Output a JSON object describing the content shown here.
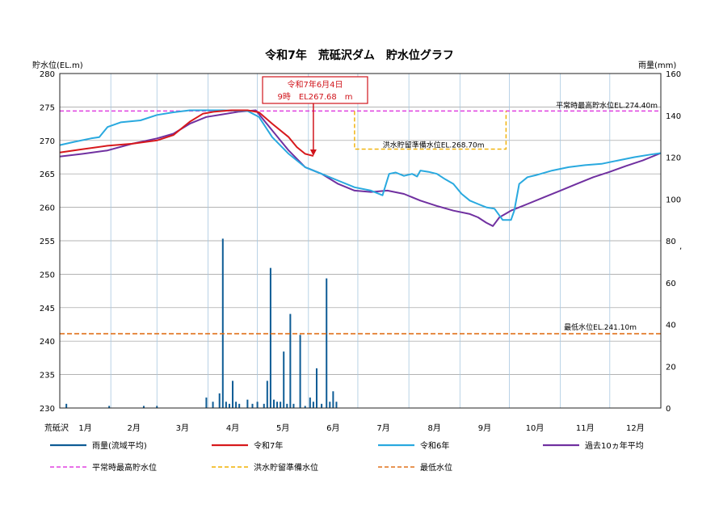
{
  "chart_data": {
    "type": "line",
    "title": "令和7年　荒砥沢ダム　貯水位グラフ",
    "y_left_label": "貯水位(EL.m)",
    "y_right_label": "雨量(mm)",
    "ylim_left": [
      230,
      280
    ],
    "ylim_right": [
      0,
      160
    ],
    "y_left_ticks": [
      230,
      235,
      240,
      245,
      250,
      255,
      260,
      265,
      270,
      275,
      280
    ],
    "y_right_ticks": [
      0,
      20,
      40,
      60,
      80,
      100,
      120,
      140,
      160
    ],
    "x_label": "荒砥沢",
    "x_tick_labels": [
      "1月",
      "2月",
      "3月",
      "4月",
      "5月",
      "6月",
      "7月",
      "8月",
      "9月",
      "10月",
      "11月",
      "12月"
    ],
    "x_range_days": [
      1,
      366
    ],
    "grid": true,
    "series": [
      {
        "name": "令和7年",
        "color": "#d7191c",
        "values": [
          [
            1,
            268.2
          ],
          [
            15,
            268.7
          ],
          [
            30,
            269.2
          ],
          [
            45,
            269.5
          ],
          [
            60,
            270.0
          ],
          [
            70,
            270.8
          ],
          [
            80,
            272.8
          ],
          [
            88,
            274.0
          ],
          [
            95,
            274.3
          ],
          [
            105,
            274.5
          ],
          [
            115,
            274.5
          ],
          [
            122,
            274.2
          ],
          [
            130,
            272.5
          ],
          [
            140,
            270.5
          ],
          [
            145,
            269.0
          ],
          [
            150,
            268.0
          ],
          [
            155,
            267.68
          ]
        ]
      },
      {
        "name": "令和6年",
        "color": "#29a9df",
        "values": [
          [
            1,
            269.3
          ],
          [
            10,
            269.8
          ],
          [
            20,
            270.3
          ],
          [
            25,
            270.5
          ],
          [
            30,
            272.0
          ],
          [
            38,
            272.7
          ],
          [
            50,
            273.0
          ],
          [
            60,
            273.8
          ],
          [
            70,
            274.2
          ],
          [
            80,
            274.5
          ],
          [
            90,
            274.5
          ],
          [
            100,
            274.5
          ],
          [
            115,
            274.4
          ],
          [
            122,
            273.5
          ],
          [
            130,
            270.5
          ],
          [
            140,
            268.0
          ],
          [
            150,
            266.0
          ],
          [
            160,
            265.0
          ],
          [
            170,
            264.0
          ],
          [
            180,
            263.0
          ],
          [
            190,
            262.5
          ],
          [
            197,
            261.8
          ],
          [
            201,
            265.0
          ],
          [
            205,
            265.2
          ],
          [
            210,
            264.7
          ],
          [
            215,
            265.0
          ],
          [
            218,
            264.6
          ],
          [
            220,
            265.5
          ],
          [
            225,
            265.3
          ],
          [
            230,
            265.0
          ],
          [
            235,
            264.2
          ],
          [
            240,
            263.5
          ],
          [
            245,
            262.0
          ],
          [
            250,
            261.0
          ],
          [
            255,
            260.5
          ],
          [
            260,
            260.0
          ],
          [
            265,
            259.8
          ],
          [
            270,
            258.1
          ],
          [
            275,
            258.1
          ],
          [
            277,
            259.5
          ],
          [
            280,
            263.5
          ],
          [
            285,
            264.5
          ],
          [
            290,
            264.8
          ],
          [
            300,
            265.5
          ],
          [
            310,
            266.0
          ],
          [
            320,
            266.3
          ],
          [
            330,
            266.5
          ],
          [
            340,
            267.0
          ],
          [
            350,
            267.5
          ],
          [
            360,
            267.9
          ],
          [
            366,
            268.1
          ]
        ]
      },
      {
        "name": "過去10ヵ年平均",
        "color": "#7030a0",
        "values": [
          [
            1,
            267.6
          ],
          [
            15,
            268.0
          ],
          [
            30,
            268.5
          ],
          [
            45,
            269.5
          ],
          [
            60,
            270.3
          ],
          [
            70,
            271.0
          ],
          [
            80,
            272.5
          ],
          [
            90,
            273.5
          ],
          [
            100,
            273.9
          ],
          [
            110,
            274.3
          ],
          [
            120,
            274.5
          ],
          [
            130,
            271.5
          ],
          [
            140,
            268.5
          ],
          [
            150,
            266.0
          ],
          [
            160,
            265.0
          ],
          [
            170,
            263.5
          ],
          [
            180,
            262.5
          ],
          [
            190,
            262.3
          ],
          [
            200,
            262.5
          ],
          [
            210,
            262.0
          ],
          [
            220,
            261.0
          ],
          [
            230,
            260.2
          ],
          [
            240,
            259.5
          ],
          [
            250,
            259.0
          ],
          [
            255,
            258.5
          ],
          [
            260,
            257.7
          ],
          [
            264,
            257.2
          ],
          [
            268,
            258.5
          ],
          [
            275,
            259.5
          ],
          [
            285,
            260.5
          ],
          [
            295,
            261.5
          ],
          [
            305,
            262.5
          ],
          [
            315,
            263.5
          ],
          [
            325,
            264.5
          ],
          [
            335,
            265.3
          ],
          [
            345,
            266.2
          ],
          [
            355,
            267.0
          ],
          [
            366,
            268.1
          ]
        ]
      }
    ],
    "rain": {
      "name": "雨量(流域平均)",
      "color": "#0e5c95",
      "bars": [
        [
          5,
          2
        ],
        [
          31,
          1
        ],
        [
          52,
          1
        ],
        [
          60,
          1
        ],
        [
          90,
          5
        ],
        [
          94,
          3
        ],
        [
          98,
          7
        ],
        [
          100,
          81
        ],
        [
          102,
          3
        ],
        [
          104,
          2
        ],
        [
          106,
          13
        ],
        [
          108,
          3
        ],
        [
          110,
          2
        ],
        [
          115,
          4
        ],
        [
          118,
          2
        ],
        [
          121,
          3
        ],
        [
          125,
          2
        ],
        [
          127,
          13
        ],
        [
          129,
          67
        ],
        [
          131,
          4
        ],
        [
          133,
          3
        ],
        [
          135,
          3
        ],
        [
          137,
          27
        ],
        [
          139,
          2
        ],
        [
          141,
          45
        ],
        [
          143,
          2
        ],
        [
          147,
          35
        ],
        [
          150,
          1
        ],
        [
          153,
          5
        ],
        [
          155,
          3
        ],
        [
          157,
          19
        ],
        [
          160,
          2
        ],
        [
          163,
          62
        ],
        [
          165,
          3
        ],
        [
          167,
          8
        ],
        [
          169,
          3
        ]
      ]
    },
    "reference_lines": [
      {
        "name": "平常時最高貯水位",
        "label": "平常時最高貯水位EL.274.40m",
        "value": 274.4,
        "color": "#e040e0"
      },
      {
        "name": "洪水貯留準備水位",
        "label": "洪水貯留準備水位EL.268.70m",
        "value": 268.7,
        "start_day": 180,
        "end_day": 272,
        "upper": 274.4,
        "color": "#f0b000"
      },
      {
        "name": "最低水位",
        "label": "最低水位EL.241.10m",
        "value": 241.1,
        "color": "#e0701a"
      }
    ],
    "annotation": {
      "line1": "令和7年6月4日",
      "line2": "9時　EL267.68　m",
      "day": 155,
      "value": 267.68,
      "color": "#d0141b"
    },
    "legend": [
      {
        "label": "雨量(流域平均)",
        "color": "#0e5c95",
        "style": "solid"
      },
      {
        "label": "令和7年",
        "color": "#d7191c",
        "style": "solid"
      },
      {
        "label": "令和6年",
        "color": "#29a9df",
        "style": "solid"
      },
      {
        "label": "過去10ヵ年平均",
        "color": "#7030a0",
        "style": "solid"
      },
      {
        "label": "平常時最高貯水位",
        "color": "#e040e0",
        "style": "dashed"
      },
      {
        "label": "洪水貯留準備水位",
        "color": "#f0b000",
        "style": "dashed"
      },
      {
        "label": "最低水位",
        "color": "#e0701a",
        "style": "dashed"
      }
    ],
    "stray_mark": ","
  }
}
